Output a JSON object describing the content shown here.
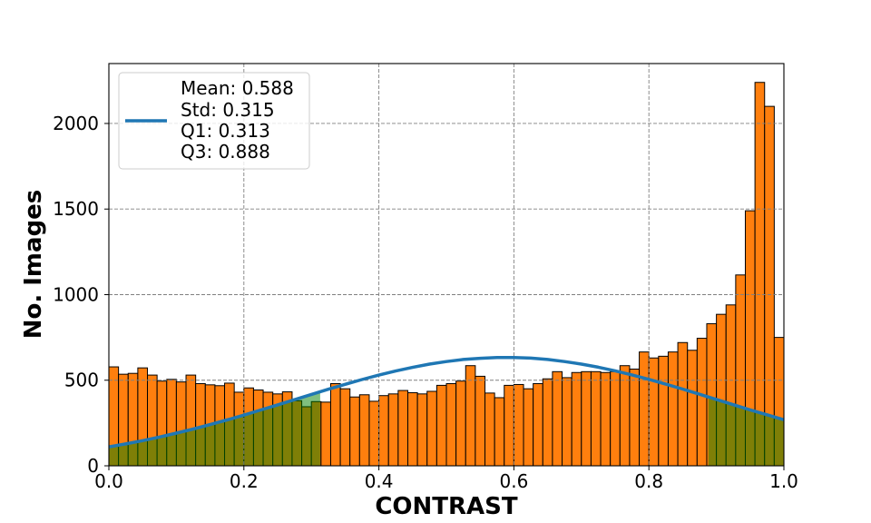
{
  "chart_data": {
    "type": "bar",
    "xlabel": "CONTRAST",
    "ylabel": "No. Images",
    "xlim": [
      0,
      1
    ],
    "ylim": [
      0,
      2350
    ],
    "x_tick_labels": [
      "0.0",
      "0.2",
      "0.4",
      "0.6",
      "0.8",
      "1.0"
    ],
    "y_tick_labels": [
      "0",
      "500",
      "1000",
      "1500",
      "2000"
    ],
    "grid": true,
    "legend_position": "upper-left",
    "histogram": {
      "bin_range": [
        0,
        1
      ],
      "counts": [
        578,
        535,
        540,
        572,
        530,
        495,
        505,
        490,
        530,
        480,
        473,
        468,
        483,
        430,
        455,
        443,
        430,
        420,
        432,
        380,
        345,
        375,
        372,
        480,
        450,
        402,
        415,
        377,
        410,
        420,
        440,
        427,
        420,
        435,
        470,
        480,
        495,
        585,
        523,
        425,
        398,
        470,
        475,
        450,
        480,
        508,
        550,
        515,
        545,
        550,
        550,
        545,
        550,
        585,
        565,
        665,
        630,
        640,
        665,
        720,
        675,
        745,
        830,
        885,
        940,
        1115,
        1490,
        2240,
        2100,
        750
      ]
    },
    "series": [
      {
        "type": "line",
        "legend_lines": [
          "Mean: 0.588",
          "Std: 0.315",
          "Q1: 0.313",
          "Q3: 0.888"
        ],
        "x": [
          0,
          0.025,
          0.05,
          0.075,
          0.1,
          0.125,
          0.15,
          0.175,
          0.2,
          0.225,
          0.25,
          0.275,
          0.3,
          0.325,
          0.35,
          0.375,
          0.4,
          0.425,
          0.45,
          0.475,
          0.5,
          0.525,
          0.55,
          0.575,
          0.6,
          0.625,
          0.65,
          0.675,
          0.7,
          0.725,
          0.75,
          0.775,
          0.8,
          0.825,
          0.85,
          0.875,
          0.9,
          0.925,
          0.95,
          0.975,
          1.0
        ],
        "y": [
          111,
          128,
          147,
          168,
          191,
          215,
          241,
          268,
          296,
          326,
          356,
          386,
          417,
          447,
          476,
          504,
          530,
          554,
          575,
          594,
          609,
          621,
          628,
          633,
          633,
          629,
          621,
          609,
          594,
          576,
          555,
          531,
          505,
          477,
          448,
          418,
          388,
          357,
          327,
          298,
          269
        ]
      }
    ],
    "shaded_ranges": [
      [
        0,
        0.313
      ],
      [
        0.888,
        1.0
      ]
    ],
    "colors": {
      "bars": "#ff7f0e",
      "bar_edge": "#000000",
      "curve": "#1f77b4",
      "shade": "#008000",
      "grid": "#808080",
      "legend_edge": "#cccccc"
    }
  }
}
